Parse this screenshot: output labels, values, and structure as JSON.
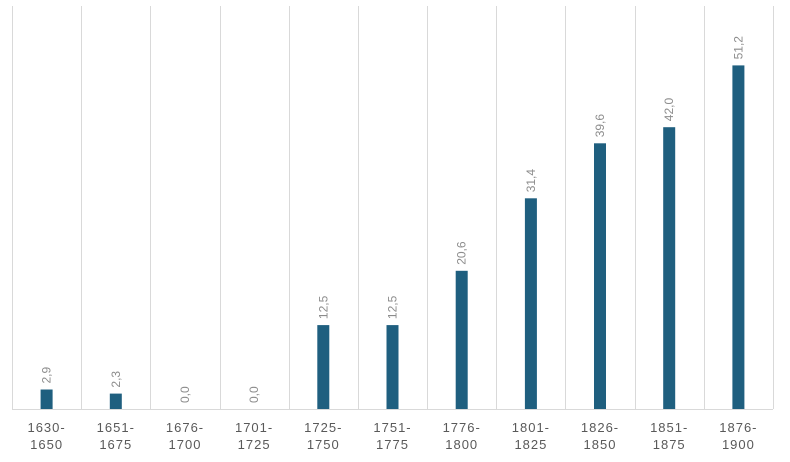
{
  "chart_data": {
    "type": "bar",
    "title": "",
    "xlabel": "",
    "ylabel": "",
    "ylim": [
      0,
      60
    ],
    "grid": "vertical",
    "categories": [
      [
        "1630-",
        "1650"
      ],
      [
        "1651-",
        "1675"
      ],
      [
        "1676-",
        "1700"
      ],
      [
        "1701-",
        "1725"
      ],
      [
        "1725-",
        "1750"
      ],
      [
        "1751-",
        "1775"
      ],
      [
        "1776-",
        "1800"
      ],
      [
        "1801-",
        "1825"
      ],
      [
        "1826-",
        "1850"
      ],
      [
        "1851-",
        "1875"
      ],
      [
        "1876-",
        "1900"
      ]
    ],
    "values": [
      2.9,
      2.3,
      0.0,
      0.0,
      12.5,
      12.5,
      20.6,
      31.4,
      39.6,
      42.0,
      51.2
    ],
    "value_labels": [
      "2,9",
      "2,3",
      "0,0",
      "0,0",
      "12,5",
      "12,5",
      "20,6",
      "31,4",
      "39,6",
      "42,0",
      "51,2"
    ],
    "bar_color": "#1f5f7f",
    "grid_color": "#d9d9d9",
    "label_color": "#8c8c8c",
    "axis_text_color": "#595959"
  }
}
